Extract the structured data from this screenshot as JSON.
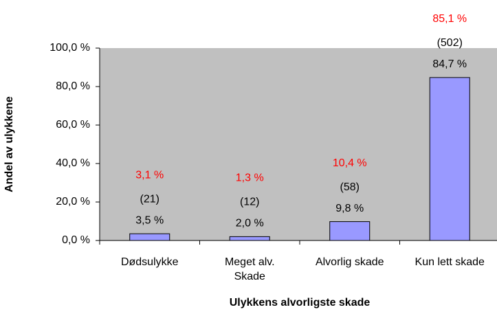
{
  "chart_data": {
    "type": "bar",
    "x_label": "Ulykkens alvorligste skade",
    "y_label": "Andel av ulykkene",
    "categories": [
      "Dødsulykke",
      "Meget alv.\nSkade",
      "Alvorlig skade",
      "Kun lett skade"
    ],
    "values": [
      3.5,
      2.0,
      9.8,
      84.7
    ],
    "value_labels": [
      "3,5 %",
      "2,0 %",
      "9,8 %",
      "84,7 %"
    ],
    "color": "#9999ff",
    "count_values": [
      21,
      12,
      58,
      502
    ],
    "count_labels": [
      "(21)",
      "(12)",
      "(58)",
      "(502)"
    ],
    "share_values": [
      3.1,
      1.3,
      10.4,
      85.1
    ],
    "share_labels": [
      "3,1 %",
      "1,3 %",
      "10,4 %",
      "85,1 %"
    ],
    "share_color": "#ff0000",
    "ylim": [
      0,
      100
    ],
    "yticks": [
      {
        "value": 0,
        "label": "0,0 %"
      },
      {
        "value": 20,
        "label": "20,0 %"
      },
      {
        "value": 40,
        "label": "40,0 %"
      },
      {
        "value": 60,
        "label": "60,0 %"
      },
      {
        "value": 80,
        "label": "80,0 %"
      },
      {
        "value": 100,
        "label": "100,0 %"
      }
    ],
    "plot_background": "#c0c0c0"
  }
}
